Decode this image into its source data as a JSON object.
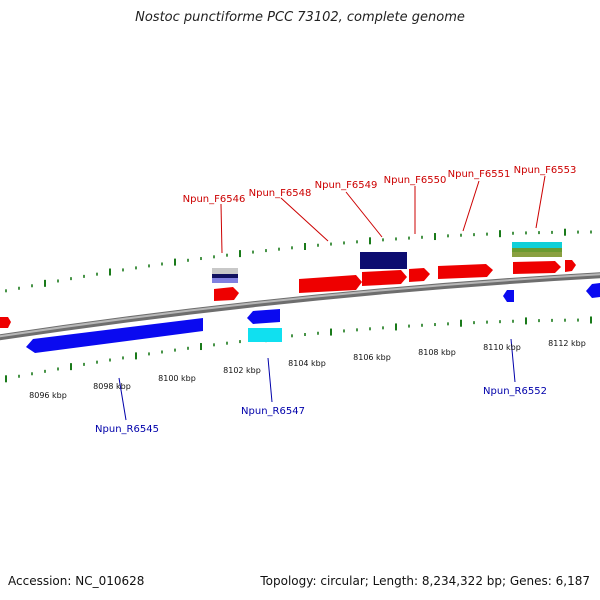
{
  "title": "Nostoc punctiforme PCC 73102, complete genome",
  "footer": {
    "accession": "Accession: NC_010628",
    "summary": "Topology: circular; Length: 8,234,322 bp; Genes: 6,187"
  },
  "colors": {
    "forward_strand": "#ff0000",
    "reverse_strand": "#0000ff",
    "tick": "#1a7a1a",
    "backbone": "#8a8a8a",
    "forward_label": "#cc0000",
    "reverse_label": "#0000aa"
  },
  "scale_labels": [
    "8096 kbp",
    "8098 kbp",
    "8100 kbp",
    "8102 kbp",
    "8104 kbp",
    "8106 kbp",
    "8108 kbp",
    "8110 kbp",
    "8112 kbp"
  ],
  "forward_genes": [
    "Npun_F6546",
    "Npun_F6548",
    "Npun_F6549",
    "Npun_F6550",
    "Npun_F6551",
    "Npun_F6553"
  ],
  "reverse_genes": [
    "Npun_R6545",
    "Npun_R6547",
    "Npun_R6552"
  ]
}
